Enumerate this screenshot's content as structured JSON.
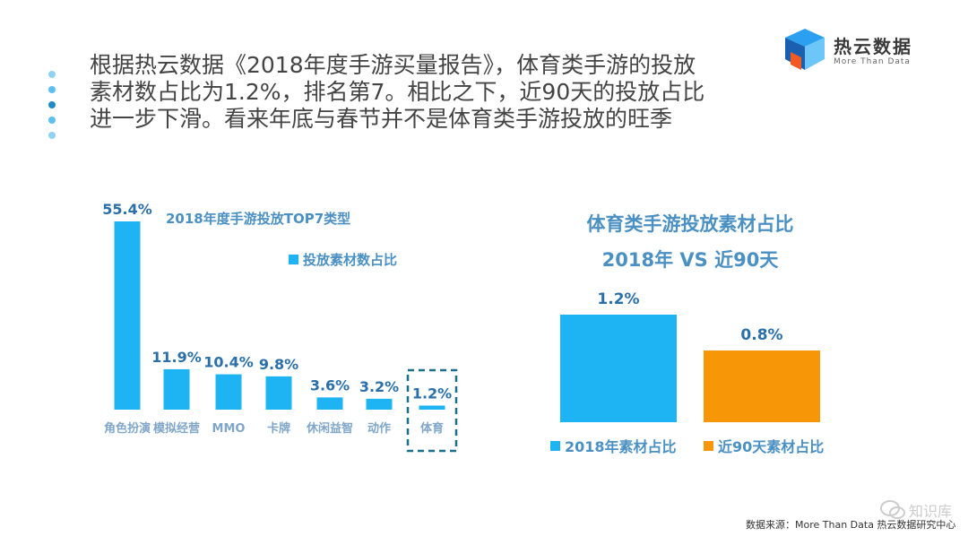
{
  "headline": "根据热云数据《2018年度手游买量报告》，体育类手游的投放素材数占比为1.2%，排名第7。相比之下，近90天的投放占比进一步下滑。看来年底与春节并不是体育类手游投放的旺季",
  "logo": {
    "cn": "热云数据",
    "en": "More Than Data",
    "icon": "cube-logo-icon"
  },
  "source": "数据来源：More Than Data 热云数据研究中心",
  "corner_watermark": "知识库",
  "colors": {
    "blue": "#1EB4F4",
    "orange": "#F79607",
    "title": "#4A90C2",
    "label": "#7FA6C8",
    "dashed": "#1A6F8C"
  },
  "chart_data": [
    {
      "type": "bar",
      "title": "2018年度手游投放TOP7类型",
      "categories": [
        "角色扮演",
        "模拟经营",
        "MMO",
        "卡牌",
        "休闲益智",
        "动作",
        "体育"
      ],
      "series": [
        {
          "name": "投放素材数占比",
          "values": [
            55.4,
            11.9,
            10.4,
            9.8,
            3.6,
            3.2,
            1.2
          ]
        }
      ],
      "value_labels": [
        "55.4%",
        "11.9%",
        "10.4%",
        "9.8%",
        "3.6%",
        "3.2%",
        "1.2%"
      ],
      "highlight": "体育",
      "legend": "top-right",
      "grid": false
    },
    {
      "type": "bar",
      "title": "体育类手游投放素材占比",
      "subtitle": "2018年 VS 近90天",
      "categories": [
        "2018年素材占比",
        "近90天素材占比"
      ],
      "values": [
        1.2,
        0.8
      ],
      "value_labels": [
        "1.2%",
        "0.8%"
      ],
      "colors": [
        "#1EB4F4",
        "#F79607"
      ],
      "legend": "bottom",
      "grid": false
    }
  ]
}
